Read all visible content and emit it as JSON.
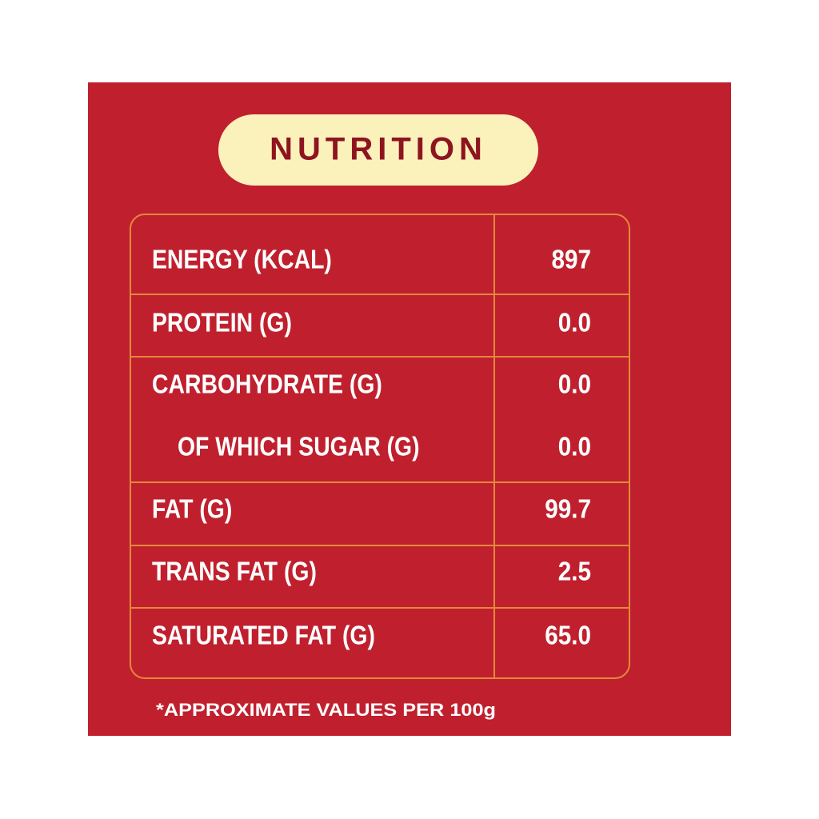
{
  "title": "NUTRITION",
  "table": {
    "rows": [
      [
        "ENERGY (KCAL)",
        "897"
      ],
      [
        "PROTEIN (G)",
        "0.0"
      ],
      [
        "CARBOHYDRATE (G)",
        "0.0"
      ],
      [
        "OF WHICH SUGAR (G)",
        "0.0"
      ],
      [
        "FAT (G)",
        "99.7"
      ],
      [
        "TRANS FAT (G)",
        "2.5"
      ],
      [
        "SATURATED FAT (G)",
        "65.0"
      ]
    ]
  },
  "footnote": "*APPROXIMATE VALUES PER 100g"
}
